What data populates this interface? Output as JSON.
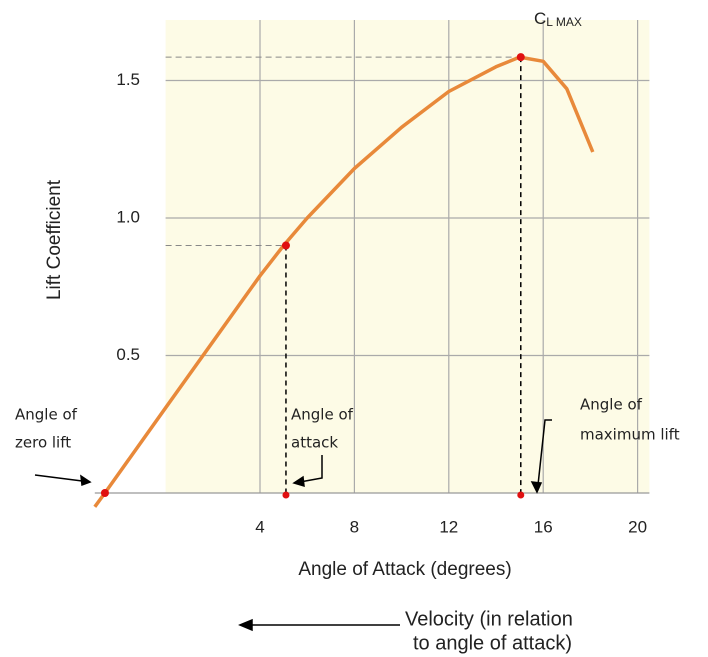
{
  "chart_data": {
    "type": "line",
    "x_label": "Angle of Attack (degrees)",
    "y_label": "Lift Coefficient",
    "x": [
      -3,
      -2.57,
      0,
      2,
      4,
      5,
      6,
      8,
      10,
      12,
      14,
      15,
      16,
      17,
      18.1
    ],
    "series": [
      {
        "color": "#e8893a",
        "values": [
          -0.05,
          0,
          0.31,
          0.55,
          0.79,
          0.9,
          1.0,
          1.18,
          1.33,
          1.46,
          1.55,
          1.585,
          1.57,
          1.47,
          1.24
        ]
      }
    ],
    "xlim": [
      -3,
      20.5
    ],
    "ylim": [
      -0.06,
      1.72
    ],
    "xticks": [
      4,
      8,
      12,
      16,
      20
    ],
    "yticks": [
      0.5,
      {
        "value": 1,
        "label": "1.0"
      },
      1.5
    ],
    "grid": true,
    "markers": [
      {
        "x": -2.57,
        "y": 0
      },
      {
        "x": 5.1,
        "y": 0.9
      },
      {
        "x": 15.05,
        "y": 1.585
      }
    ],
    "cl_max_label": {
      "main": "C",
      "sub": "L MAX"
    },
    "annotations": [
      {
        "lines": [
          "Angle of",
          "zero lift"
        ]
      },
      {
        "lines": [
          "Angle of",
          "attack"
        ]
      },
      {
        "lines": [
          "Angle of",
          "maximum lift"
        ]
      }
    ],
    "velocity_note": [
      "Velocity (in relation",
      "to angle of attack)"
    ]
  }
}
